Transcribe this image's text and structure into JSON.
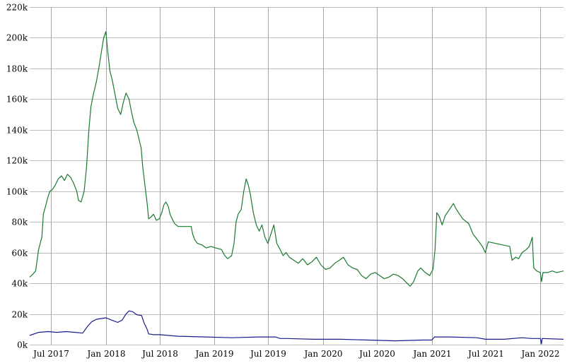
{
  "chart_data": {
    "type": "line",
    "title": "",
    "xlabel": "",
    "ylabel": "",
    "ylim": [
      0,
      220000
    ],
    "grid": true,
    "legend": "none",
    "y_ticks": [
      {
        "value": 0,
        "label": "0k"
      },
      {
        "value": 20000,
        "label": "20k"
      },
      {
        "value": 40000,
        "label": "40k"
      },
      {
        "value": 60000,
        "label": "60k"
      },
      {
        "value": 80000,
        "label": "80k"
      },
      {
        "value": 100000,
        "label": "100k"
      },
      {
        "value": 120000,
        "label": "120k"
      },
      {
        "value": 140000,
        "label": "140k"
      },
      {
        "value": 160000,
        "label": "160k"
      },
      {
        "value": 180000,
        "label": "180k"
      },
      {
        "value": 200000,
        "label": "200k"
      },
      {
        "value": 220000,
        "label": "220k"
      }
    ],
    "xlim": [
      "2017-04-20",
      "2022-03-20"
    ],
    "x_ticks": [
      {
        "date": "2017-07-01",
        "label": "Jul 2017"
      },
      {
        "date": "2018-01-01",
        "label": "Jan 2018"
      },
      {
        "date": "2018-07-01",
        "label": "Jul 2018"
      },
      {
        "date": "2019-01-01",
        "label": "Jan 2019"
      },
      {
        "date": "2019-07-01",
        "label": "Jul 2019"
      },
      {
        "date": "2020-01-01",
        "label": "Jan 2020"
      },
      {
        "date": "2020-07-01",
        "label": "Jul 2020"
      },
      {
        "date": "2021-01-01",
        "label": "Jan 2021"
      },
      {
        "date": "2021-07-01",
        "label": "Jul 2021"
      },
      {
        "date": "2022-01-01",
        "label": "Jan 2022"
      }
    ],
    "series": [
      {
        "color": "#1a7a2e",
        "points": [
          [
            "2017-04-20",
            44000
          ],
          [
            "2017-05-01",
            46000
          ],
          [
            "2017-05-10",
            48000
          ],
          [
            "2017-05-20",
            62000
          ],
          [
            "2017-05-31",
            70000
          ],
          [
            "2017-06-05",
            85000
          ],
          [
            "2017-06-12",
            90000
          ],
          [
            "2017-06-20",
            96000
          ],
          [
            "2017-06-27",
            100000
          ],
          [
            "2017-07-05",
            101000
          ],
          [
            "2017-07-15",
            104000
          ],
          [
            "2017-07-25",
            108000
          ],
          [
            "2017-08-05",
            110000
          ],
          [
            "2017-08-15",
            107000
          ],
          [
            "2017-08-25",
            111000
          ],
          [
            "2017-09-05",
            109000
          ],
          [
            "2017-09-15",
            105000
          ],
          [
            "2017-09-25",
            100000
          ],
          [
            "2017-10-01",
            94000
          ],
          [
            "2017-10-10",
            93000
          ],
          [
            "2017-10-20",
            100000
          ],
          [
            "2017-10-28",
            115000
          ],
          [
            "2017-11-05",
            140000
          ],
          [
            "2017-11-12",
            155000
          ],
          [
            "2017-11-20",
            163000
          ],
          [
            "2017-12-01",
            172000
          ],
          [
            "2017-12-10",
            182000
          ],
          [
            "2017-12-18",
            192000
          ],
          [
            "2017-12-25",
            200000
          ],
          [
            "2018-01-01",
            204000
          ],
          [
            "2018-01-08",
            190000
          ],
          [
            "2018-01-15",
            178000
          ],
          [
            "2018-01-22",
            173000
          ],
          [
            "2018-02-01",
            163000
          ],
          [
            "2018-02-10",
            154000
          ],
          [
            "2018-02-20",
            150000
          ],
          [
            "2018-03-01",
            158000
          ],
          [
            "2018-03-10",
            164000
          ],
          [
            "2018-03-20",
            160000
          ],
          [
            "2018-03-28",
            152000
          ],
          [
            "2018-04-05",
            145000
          ],
          [
            "2018-04-15",
            140000
          ],
          [
            "2018-04-20",
            136000
          ],
          [
            "2018-04-30",
            128000
          ],
          [
            "2018-05-05",
            116000
          ],
          [
            "2018-05-15",
            100000
          ],
          [
            "2018-05-20",
            92000
          ],
          [
            "2018-05-25",
            82000
          ],
          [
            "2018-06-01",
            83000
          ],
          [
            "2018-06-10",
            85000
          ],
          [
            "2018-06-20",
            81000
          ],
          [
            "2018-06-30",
            82000
          ],
          [
            "2018-07-08",
            86000
          ],
          [
            "2018-07-15",
            91000
          ],
          [
            "2018-07-22",
            93000
          ],
          [
            "2018-07-30",
            90000
          ],
          [
            "2018-08-05",
            85000
          ],
          [
            "2018-08-12",
            82000
          ],
          [
            "2018-08-20",
            79000
          ],
          [
            "2018-09-01",
            77000
          ],
          [
            "2018-10-01",
            77000
          ],
          [
            "2018-10-15",
            77000
          ],
          [
            "2018-10-20",
            72000
          ],
          [
            "2018-10-28",
            68000
          ],
          [
            "2018-11-05",
            66000
          ],
          [
            "2018-11-20",
            65000
          ],
          [
            "2018-12-05",
            63000
          ],
          [
            "2018-12-20",
            64000
          ],
          [
            "2019-01-05",
            63000
          ],
          [
            "2019-01-25",
            62000
          ],
          [
            "2019-02-05",
            58000
          ],
          [
            "2019-02-15",
            56000
          ],
          [
            "2019-02-28",
            58000
          ],
          [
            "2019-03-08",
            66000
          ],
          [
            "2019-03-15",
            80000
          ],
          [
            "2019-03-22",
            85000
          ],
          [
            "2019-04-01",
            88000
          ],
          [
            "2019-04-10",
            100000
          ],
          [
            "2019-04-18",
            108000
          ],
          [
            "2019-04-25",
            104000
          ],
          [
            "2019-05-02",
            98000
          ],
          [
            "2019-05-12",
            86000
          ],
          [
            "2019-05-22",
            78000
          ],
          [
            "2019-06-01",
            74000
          ],
          [
            "2019-06-10",
            78000
          ],
          [
            "2019-06-20",
            70000
          ],
          [
            "2019-06-30",
            66000
          ],
          [
            "2019-07-10",
            72000
          ],
          [
            "2019-07-20",
            78000
          ],
          [
            "2019-07-30",
            66000
          ],
          [
            "2019-08-10",
            62000
          ],
          [
            "2019-08-20",
            58000
          ],
          [
            "2019-08-30",
            60000
          ],
          [
            "2019-09-10",
            57000
          ],
          [
            "2019-09-25",
            55000
          ],
          [
            "2019-10-10",
            53000
          ],
          [
            "2019-10-25",
            56000
          ],
          [
            "2019-11-10",
            52000
          ],
          [
            "2019-11-25",
            54000
          ],
          [
            "2019-12-10",
            57000
          ],
          [
            "2019-12-25",
            52000
          ],
          [
            "2020-01-10",
            49000
          ],
          [
            "2020-01-25",
            50000
          ],
          [
            "2020-02-10",
            53000
          ],
          [
            "2020-02-25",
            55000
          ],
          [
            "2020-03-10",
            57000
          ],
          [
            "2020-03-25",
            52000
          ],
          [
            "2020-04-10",
            50000
          ],
          [
            "2020-04-25",
            49000
          ],
          [
            "2020-05-10",
            45000
          ],
          [
            "2020-05-25",
            43000
          ],
          [
            "2020-06-10",
            46000
          ],
          [
            "2020-06-25",
            47000
          ],
          [
            "2020-07-10",
            45000
          ],
          [
            "2020-07-25",
            43000
          ],
          [
            "2020-08-10",
            44000
          ],
          [
            "2020-08-25",
            46000
          ],
          [
            "2020-09-10",
            45000
          ],
          [
            "2020-09-25",
            43000
          ],
          [
            "2020-10-10",
            40000
          ],
          [
            "2020-10-20",
            38000
          ],
          [
            "2020-11-01",
            41000
          ],
          [
            "2020-11-15",
            48000
          ],
          [
            "2020-11-25",
            50000
          ],
          [
            "2020-12-10",
            47000
          ],
          [
            "2020-12-25",
            45000
          ],
          [
            "2021-01-05",
            49000
          ],
          [
            "2021-01-12",
            62000
          ],
          [
            "2021-01-18",
            86000
          ],
          [
            "2021-01-25",
            84000
          ],
          [
            "2021-02-05",
            78000
          ],
          [
            "2021-02-15",
            84000
          ],
          [
            "2021-03-01",
            88000
          ],
          [
            "2021-03-15",
            92000
          ],
          [
            "2021-03-22",
            89000
          ],
          [
            "2021-04-01",
            86000
          ],
          [
            "2021-04-15",
            82000
          ],
          [
            "2021-05-05",
            79000
          ],
          [
            "2021-05-20",
            72000
          ],
          [
            "2021-06-05",
            68000
          ],
          [
            "2021-06-20",
            64000
          ],
          [
            "2021-06-30",
            60000
          ],
          [
            "2021-07-10",
            67000
          ],
          [
            "2021-09-20",
            64000
          ],
          [
            "2021-09-28",
            55000
          ],
          [
            "2021-10-10",
            57000
          ],
          [
            "2021-10-20",
            56000
          ],
          [
            "2021-11-01",
            60000
          ],
          [
            "2021-11-15",
            62000
          ],
          [
            "2021-11-25",
            64000
          ],
          [
            "2021-12-05",
            70000
          ],
          [
            "2021-12-10",
            50000
          ],
          [
            "2021-12-20",
            48000
          ],
          [
            "2022-01-01",
            47000
          ],
          [
            "2022-01-05",
            41000
          ],
          [
            "2022-01-10",
            47000
          ],
          [
            "2022-01-25",
            47000
          ],
          [
            "2022-02-10",
            48000
          ],
          [
            "2022-02-25",
            47000
          ],
          [
            "2022-03-20",
            48000
          ]
        ]
      },
      {
        "color": "#1a1a8c",
        "points": [
          [
            "2017-04-20",
            6000
          ],
          [
            "2017-05-20",
            8000
          ],
          [
            "2017-06-20",
            8500
          ],
          [
            "2017-07-20",
            8000
          ],
          [
            "2017-08-20",
            8500
          ],
          [
            "2017-09-20",
            8000
          ],
          [
            "2017-10-15",
            7500
          ],
          [
            "2017-11-01",
            12000
          ],
          [
            "2017-11-15",
            15000
          ],
          [
            "2017-12-01",
            16500
          ],
          [
            "2018-01-01",
            17500
          ],
          [
            "2018-01-20",
            16000
          ],
          [
            "2018-02-10",
            14500
          ],
          [
            "2018-02-25",
            16000
          ],
          [
            "2018-03-10",
            20000
          ],
          [
            "2018-03-20",
            22000
          ],
          [
            "2018-04-01",
            21500
          ],
          [
            "2018-04-15",
            19500
          ],
          [
            "2018-05-01",
            19000
          ],
          [
            "2018-05-10",
            14000
          ],
          [
            "2018-05-20",
            10000
          ],
          [
            "2018-05-25",
            7000
          ],
          [
            "2018-06-10",
            6500
          ],
          [
            "2018-07-01",
            6500
          ],
          [
            "2018-08-01",
            6000
          ],
          [
            "2018-09-01",
            5500
          ],
          [
            "2018-12-01",
            5000
          ],
          [
            "2019-03-01",
            4500
          ],
          [
            "2019-06-01",
            5000
          ],
          [
            "2019-07-25",
            5000
          ],
          [
            "2019-08-10",
            4000
          ],
          [
            "2019-09-01",
            4000
          ],
          [
            "2019-12-01",
            3500
          ],
          [
            "2020-03-01",
            3500
          ],
          [
            "2020-06-01",
            3000
          ],
          [
            "2020-09-01",
            2500
          ],
          [
            "2020-12-01",
            3000
          ],
          [
            "2021-01-01",
            3000
          ],
          [
            "2021-01-10",
            5000
          ],
          [
            "2021-03-01",
            5000
          ],
          [
            "2021-06-01",
            4500
          ],
          [
            "2021-07-01",
            3500
          ],
          [
            "2021-09-01",
            3500
          ],
          [
            "2021-11-01",
            4500
          ],
          [
            "2021-12-01",
            4000
          ],
          [
            "2022-01-01",
            4000
          ],
          [
            "2022-01-05",
            500
          ],
          [
            "2022-01-07",
            4000
          ],
          [
            "2022-03-20",
            3500
          ]
        ]
      }
    ]
  }
}
